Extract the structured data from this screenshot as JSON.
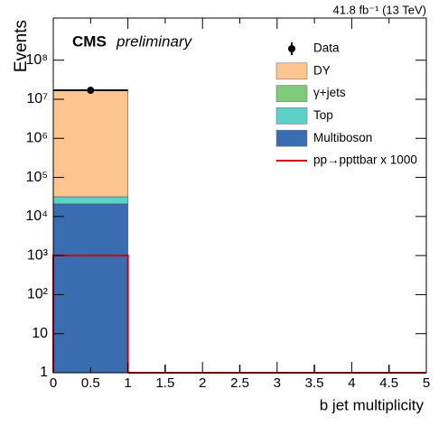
{
  "chart_data": {
    "type": "stacked-histogram",
    "title": "CMS",
    "subtitle": "preliminary",
    "annotation": "41.8 fb⁻¹ (13 TeV)",
    "x_label": "b jet multiplicity",
    "y_label": "Events",
    "bins": [
      0,
      1,
      2,
      3,
      4,
      5
    ],
    "series": [
      {
        "name": "Multiboson",
        "color": "#3a6cb1",
        "values": [
          21000,
          0,
          0,
          0,
          0
        ]
      },
      {
        "name": "Top",
        "color": "#5bd1c8",
        "values": [
          11000,
          0,
          0,
          0,
          0
        ]
      },
      {
        "name": "γ+jets",
        "color": "#7ec97a",
        "values": [
          0,
          0,
          0,
          0,
          0
        ]
      },
      {
        "name": "DY",
        "color": "#fdc590",
        "values": [
          17000000,
          0,
          0,
          0,
          0
        ]
      }
    ],
    "data": {
      "name": "Data",
      "color": "#000000",
      "values": [
        17000000,
        0,
        0,
        0,
        0
      ]
    },
    "signal": {
      "name": "pp→ppttbar x 1000",
      "color": "#d40000",
      "values": [
        1000,
        0,
        0,
        0,
        0
      ]
    },
    "xlim": [
      0,
      5
    ],
    "xticks": [
      0,
      0.5,
      1,
      1.5,
      2,
      2.5,
      3,
      3.5,
      4,
      4.5,
      5
    ],
    "ylim": [
      1,
      1200000000
    ],
    "log_y": true,
    "yticks": [
      1,
      10,
      {
        "value": 100,
        "label": "10²"
      },
      {
        "value": 1000,
        "label": "10³"
      },
      {
        "value": 10000,
        "label": "10⁴"
      },
      {
        "value": 100000,
        "label": "10⁵"
      },
      {
        "value": 1000000,
        "label": "10⁶"
      },
      {
        "value": 10000000,
        "label": "10⁷"
      },
      {
        "value": 100000000,
        "label": "10⁸"
      }
    ],
    "legend": "top-right"
  }
}
